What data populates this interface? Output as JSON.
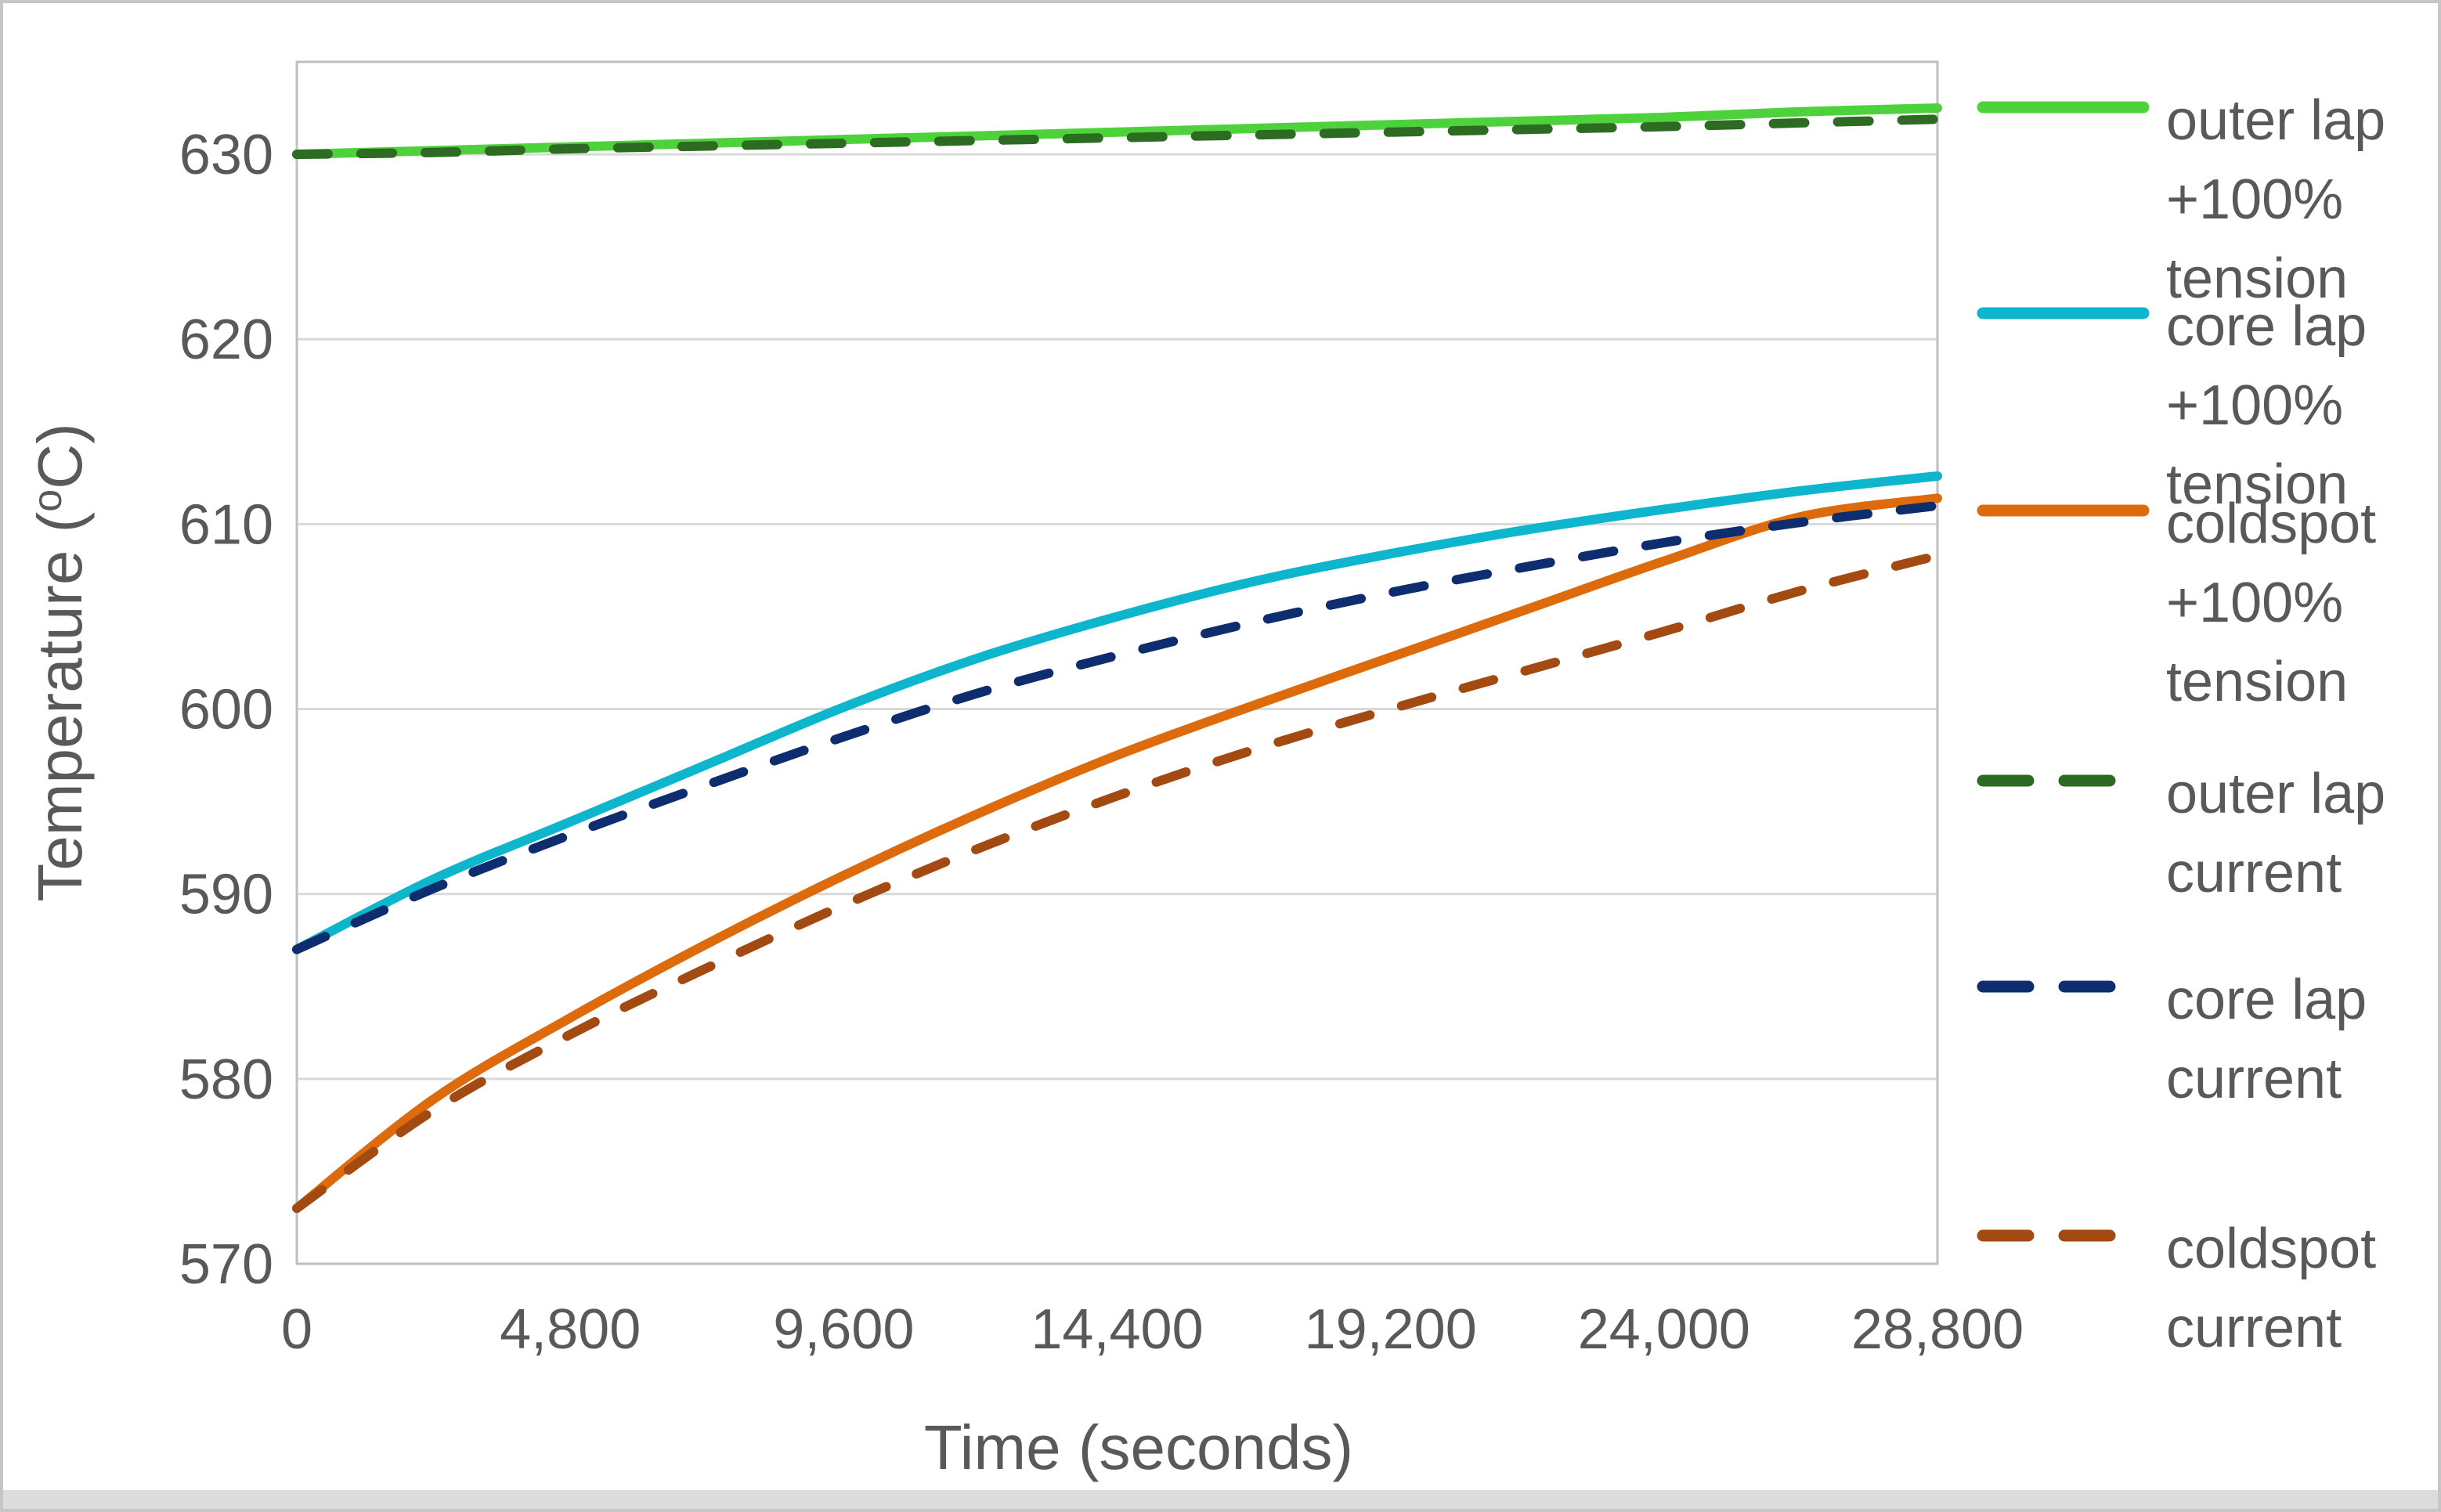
{
  "figure": {
    "description": "Line chart of simulated temperatures versus time for coil locations under current and +100% tension conditions"
  },
  "colors": {
    "text": "#595959",
    "grid": "#d9d9d9",
    "plot_border": "#bfbfbf",
    "frame": "#c6c6c6",
    "background": "#ffffff",
    "green": "#4ed23b",
    "cyan": "#0db5cd",
    "orange": "#dd6b0b",
    "dark_green": "#2e6b22",
    "navy": "#0e2d6e",
    "brown": "#a34a12"
  },
  "chart_data": {
    "type": "line",
    "title": "",
    "xlabel": "Time (seconds)",
    "ylabel": "Temperature (°C)",
    "ylabel_parts": {
      "prefix": "Temperature (",
      "sup": "o",
      "suffix": "C)"
    },
    "xlim": [
      0,
      28800
    ],
    "ylim": [
      570,
      635
    ],
    "grid": "horizontal-only",
    "legend_position": "right",
    "x_ticks": [
      {
        "value": 0,
        "label": "0"
      },
      {
        "value": 4800,
        "label": "4,800"
      },
      {
        "value": 9600,
        "label": "9,600"
      },
      {
        "value": 14400,
        "label": "14,400"
      },
      {
        "value": 19200,
        "label": "19,200"
      },
      {
        "value": 24000,
        "label": "24,000"
      },
      {
        "value": 28800,
        "label": "28,800"
      }
    ],
    "y_ticks": [
      {
        "value": 570,
        "label": "570"
      },
      {
        "value": 580,
        "label": "580"
      },
      {
        "value": 590,
        "label": "590"
      },
      {
        "value": 600,
        "label": "600"
      },
      {
        "value": 610,
        "label": "610"
      },
      {
        "value": 620,
        "label": "620"
      },
      {
        "value": 630,
        "label": "630"
      }
    ],
    "x": [
      0,
      2400,
      4800,
      7200,
      9600,
      12000,
      14400,
      16800,
      19200,
      21600,
      24000,
      26400,
      28800
    ],
    "series": [
      {
        "name": "outer lap +100% tension",
        "legend_lines": [
          "outer lap",
          "+100%",
          "tension"
        ],
        "color": "#4ed23b",
        "style": "solid",
        "values": [
          630.0,
          630.2,
          630.4,
          630.6,
          630.8,
          631.0,
          631.2,
          631.4,
          631.6,
          631.8,
          632.0,
          632.3,
          632.5
        ]
      },
      {
        "name": "core lap +100% tension",
        "legend_lines": [
          "core lap",
          "+100%",
          "tension"
        ],
        "color": "#0db5cd",
        "style": "solid",
        "values": [
          587.0,
          590.8,
          593.9,
          597.0,
          600.1,
          602.8,
          605.0,
          606.9,
          608.4,
          609.7,
          610.8,
          611.8,
          612.6
        ]
      },
      {
        "name": "coldspot +100% tension",
        "legend_lines": [
          "coldspot",
          "+100%",
          "tension"
        ],
        "color": "#dd6b0b",
        "style": "solid",
        "values": [
          573.0,
          578.9,
          583.3,
          587.3,
          591.0,
          594.4,
          597.5,
          600.2,
          602.8,
          605.4,
          608.0,
          610.4,
          611.4
        ]
      },
      {
        "name": "outer lap current",
        "legend_lines": [
          "outer lap",
          "current"
        ],
        "color": "#2e6b22",
        "style": "dashed",
        "values": [
          630.0,
          630.1,
          630.3,
          630.45,
          630.6,
          630.75,
          630.9,
          631.05,
          631.2,
          631.35,
          631.5,
          631.7,
          631.9
        ]
      },
      {
        "name": "core lap current",
        "legend_lines": [
          "core lap",
          "current"
        ],
        "color": "#0e2d6e",
        "style": "dashed",
        "values": [
          587.0,
          590.3,
          593.2,
          595.9,
          598.5,
          600.9,
          602.9,
          604.7,
          606.3,
          607.7,
          609.0,
          610.1,
          611.0
        ]
      },
      {
        "name": "coldspot current",
        "legend_lines": [
          "coldspot",
          "current"
        ],
        "color": "#a34a12",
        "style": "dashed",
        "values": [
          573.0,
          578.3,
          582.4,
          586.0,
          589.4,
          592.5,
          595.3,
          597.8,
          600.0,
          602.1,
          604.2,
          606.4,
          608.3
        ]
      }
    ]
  }
}
